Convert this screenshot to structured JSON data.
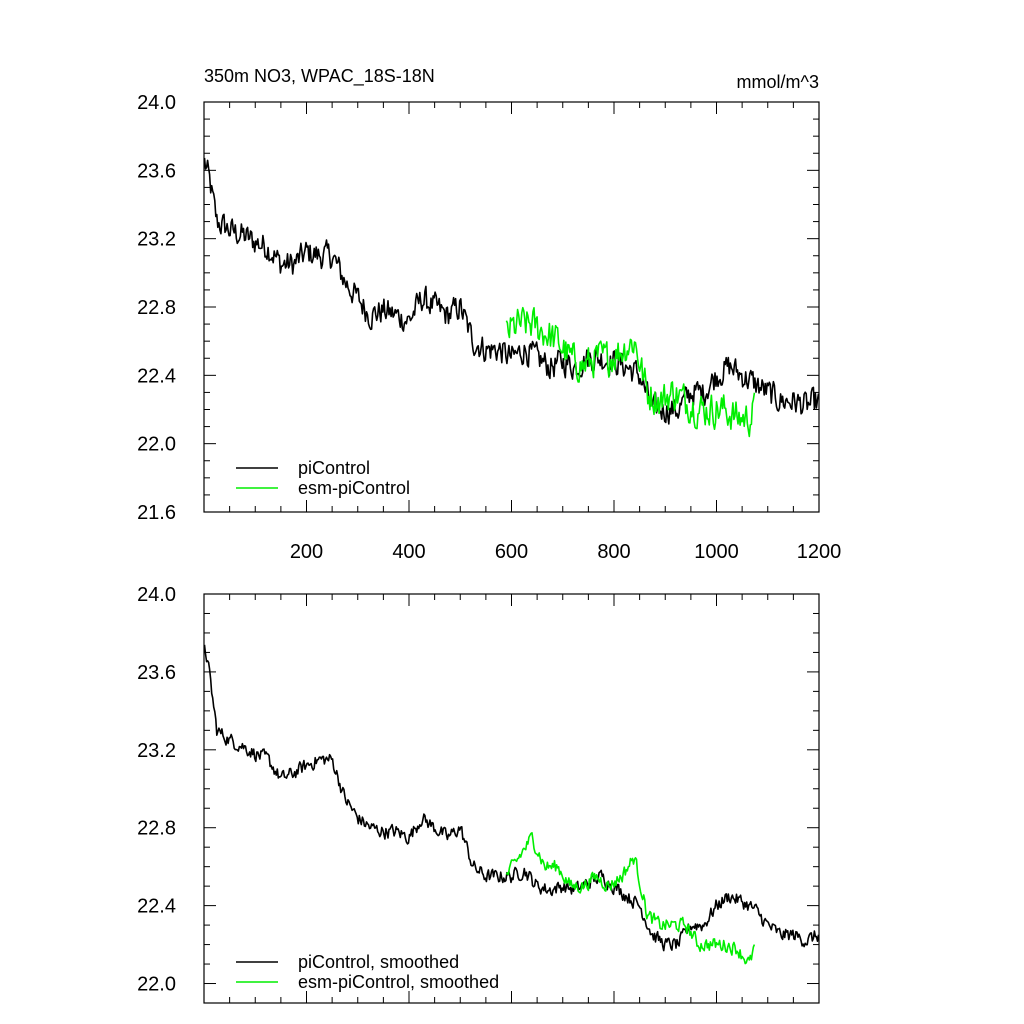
{
  "figure": {
    "title_left": "350m NO3, WPAC_18S-18N",
    "title_right": "mmol/m^3"
  },
  "chart_data": [
    {
      "type": "line",
      "xlim": [
        0,
        1200
      ],
      "ylim": [
        21.6,
        24.0
      ],
      "xticks": [
        200,
        400,
        600,
        800,
        1000,
        1200
      ],
      "xtick_labels": [
        "200",
        "400",
        "600",
        "800",
        "1000",
        "1200"
      ],
      "yticks": [
        21.6,
        22.0,
        22.4,
        22.8,
        23.2,
        23.6,
        24.0
      ],
      "ytick_labels": [
        "21.6",
        "22.0",
        "22.4",
        "22.8",
        "23.2",
        "23.6",
        "24.0"
      ],
      "legend_position": "bottom-left",
      "series": [
        {
          "name": "piControl",
          "color": "#000000",
          "x": [
            1,
            10,
            25,
            50,
            75,
            100,
            125,
            150,
            175,
            200,
            225,
            250,
            275,
            300,
            325,
            350,
            375,
            400,
            425,
            450,
            475,
            500,
            525,
            550,
            575,
            600,
            625,
            650,
            675,
            700,
            725,
            750,
            775,
            800,
            825,
            850,
            875,
            900,
            925,
            950,
            975,
            1000,
            1025,
            1050,
            1075,
            1100,
            1125,
            1150,
            1175,
            1200
          ],
          "y": [
            23.65,
            23.55,
            23.3,
            23.25,
            23.22,
            23.18,
            23.15,
            23.05,
            23.05,
            23.12,
            23.1,
            23.1,
            22.95,
            22.85,
            22.75,
            22.78,
            22.75,
            22.72,
            22.85,
            22.8,
            22.75,
            22.8,
            22.6,
            22.55,
            22.55,
            22.5,
            22.55,
            22.5,
            22.45,
            22.48,
            22.45,
            22.5,
            22.5,
            22.48,
            22.45,
            22.4,
            22.2,
            22.2,
            22.2,
            22.3,
            22.3,
            22.4,
            22.45,
            22.4,
            22.35,
            22.3,
            22.25,
            22.25,
            22.22,
            22.25
          ],
          "noise": 0.11
        },
        {
          "name": "esm-piControl",
          "color": "#00ee00",
          "x": [
            590,
            615,
            640,
            665,
            690,
            715,
            740,
            765,
            790,
            815,
            840,
            865,
            890,
            915,
            940,
            965,
            990,
            1015,
            1040,
            1065,
            1075
          ],
          "y": [
            22.65,
            22.7,
            22.7,
            22.65,
            22.6,
            22.5,
            22.45,
            22.5,
            22.5,
            22.55,
            22.6,
            22.3,
            22.25,
            22.3,
            22.25,
            22.2,
            22.2,
            22.2,
            22.15,
            22.15,
            22.2
          ],
          "noise": 0.14
        }
      ]
    },
    {
      "type": "line",
      "xlim": [
        0,
        1200
      ],
      "ylim": [
        21.9,
        24.0
      ],
      "yticks": [
        22.0,
        22.4,
        22.8,
        23.2,
        23.6,
        24.0
      ],
      "ytick_labels": [
        "22.0",
        "22.4",
        "22.8",
        "23.2",
        "23.6",
        "24.0"
      ],
      "legend_position": "bottom-left",
      "series": [
        {
          "name": "piControl, smoothed",
          "color": "#000000",
          "x": [
            1,
            10,
            25,
            50,
            75,
            100,
            125,
            150,
            175,
            200,
            225,
            250,
            275,
            300,
            325,
            350,
            375,
            400,
            425,
            450,
            475,
            500,
            525,
            550,
            575,
            600,
            625,
            650,
            675,
            700,
            725,
            750,
            775,
            800,
            825,
            850,
            875,
            900,
            925,
            950,
            975,
            1000,
            1025,
            1050,
            1075,
            1100,
            1125,
            1150,
            1175,
            1200
          ],
          "y": [
            23.75,
            23.6,
            23.3,
            23.25,
            23.22,
            23.18,
            23.15,
            23.05,
            23.08,
            23.12,
            23.15,
            23.15,
            22.95,
            22.85,
            22.8,
            22.78,
            22.78,
            22.75,
            22.85,
            22.8,
            22.75,
            22.8,
            22.6,
            22.55,
            22.55,
            22.55,
            22.58,
            22.5,
            22.48,
            22.5,
            22.48,
            22.52,
            22.55,
            22.5,
            22.45,
            22.4,
            22.25,
            22.2,
            22.2,
            22.3,
            22.3,
            22.4,
            22.45,
            22.42,
            22.38,
            22.3,
            22.25,
            22.25,
            22.22,
            22.25
          ],
          "noise": 0.05
        },
        {
          "name": "esm-piControl, smoothed",
          "color": "#00ee00",
          "x": [
            590,
            615,
            640,
            665,
            690,
            715,
            740,
            765,
            790,
            815,
            840,
            865,
            890,
            915,
            940,
            965,
            990,
            1015,
            1040,
            1065,
            1075
          ],
          "y": [
            22.55,
            22.65,
            22.75,
            22.6,
            22.6,
            22.5,
            22.5,
            22.55,
            22.5,
            22.55,
            22.65,
            22.35,
            22.3,
            22.3,
            22.3,
            22.2,
            22.2,
            22.2,
            22.18,
            22.1,
            22.2
          ],
          "noise": 0.05
        }
      ]
    }
  ]
}
